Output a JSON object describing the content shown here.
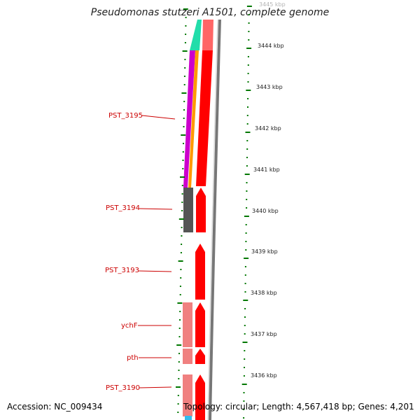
{
  "title": "Pseudomonas stutzeri A1501, complete genome",
  "footer": {
    "accession": "Accession: NC_009434",
    "summary": "Topology: circular; Length: 4,567,418 bp; Genes: 4,201"
  },
  "colors": {
    "forward_cds": "#ff0000",
    "reverse_cds": "#f08080",
    "gc_skew": "#cc00cc",
    "gc_content": "#ff9900",
    "feature_teal": "#22ddaa",
    "feature_dark": "#555555",
    "feature_cyan": "#33bbee",
    "backbone": "#777777",
    "tick": "#007700",
    "label": "#cc0000"
  },
  "scale": {
    "ticks_kbp": [
      "3445 kbp",
      "3444 kbp",
      "3443 kbp",
      "3442 kbp",
      "3441 kbp",
      "3440 kbp",
      "3439 kbp",
      "3438 kbp",
      "3437 kbp",
      "3436 kbp"
    ]
  },
  "genes": [
    {
      "label": "PST_3195"
    },
    {
      "label": "PST_3194"
    },
    {
      "label": "PST_3193"
    },
    {
      "label": "ychF"
    },
    {
      "label": "pth"
    },
    {
      "label": "PST_3190"
    }
  ]
}
